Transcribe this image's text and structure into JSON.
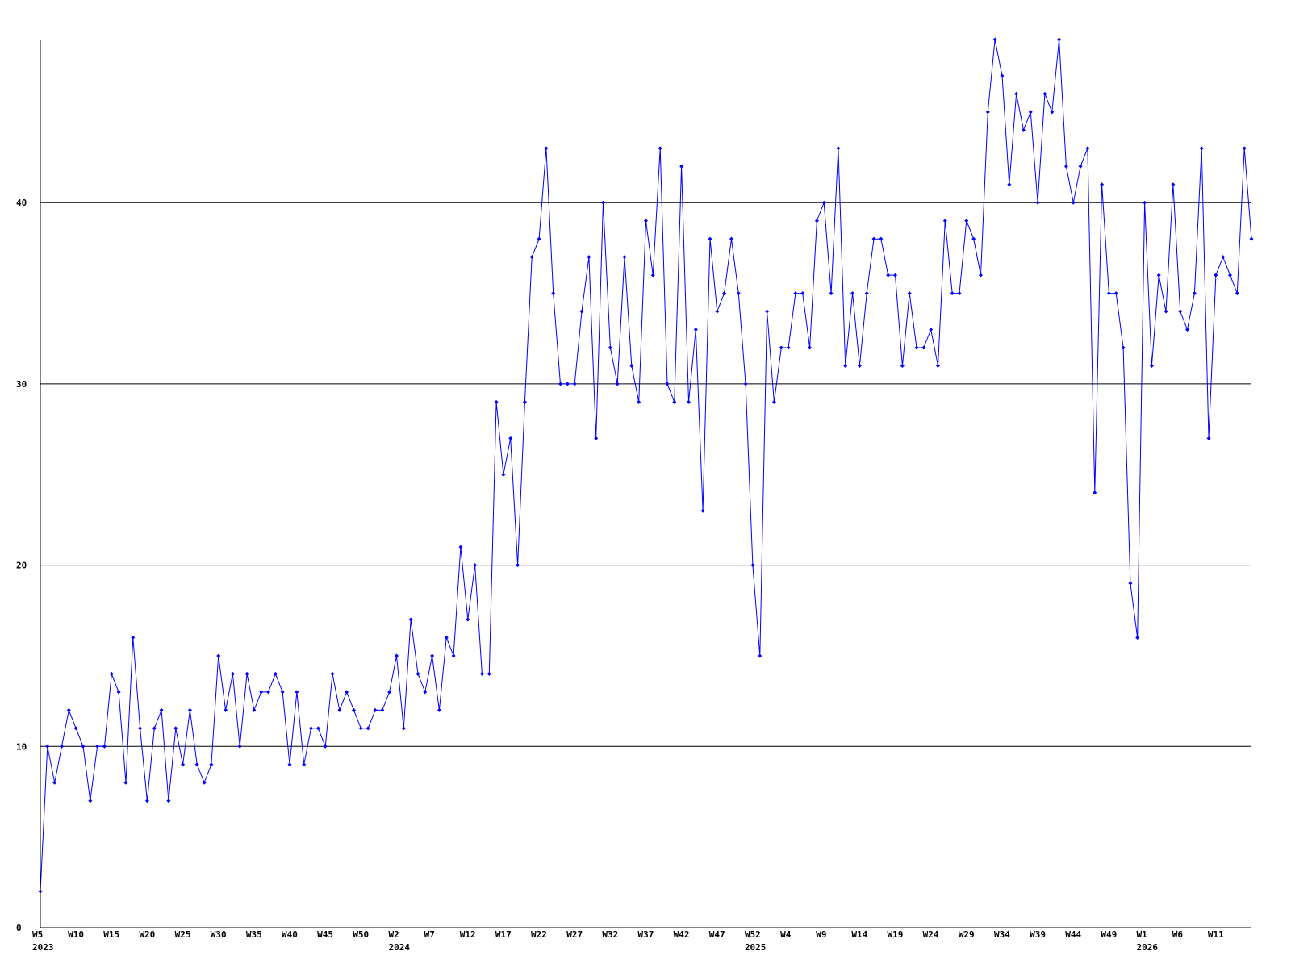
{
  "chart_data": {
    "type": "line",
    "title": "",
    "xlabel": "",
    "ylabel": "",
    "ylim": [
      0,
      49
    ],
    "y_ticks": [
      0,
      10,
      20,
      30,
      40
    ],
    "grid": "horizontal",
    "x_tick_every": 5,
    "x_tick_labels": [
      "W5",
      "W10",
      "W15",
      "W20",
      "W25",
      "W30",
      "W35",
      "W40",
      "W45",
      "W50",
      "W2",
      "W7",
      "W12",
      "W17",
      "W22",
      "W27",
      "W32",
      "W37",
      "W42",
      "W47",
      "W52",
      "W4",
      "W9",
      "W14",
      "W19",
      "W24",
      "W29",
      "W34",
      "W39",
      "W44",
      "W49",
      "W1",
      "W6",
      "W11"
    ],
    "year_labels": [
      {
        "label": "2023",
        "at_tick": "W5"
      },
      {
        "label": "2024",
        "at_tick": "W2"
      },
      {
        "label": "2025",
        "at_tick": "W52"
      },
      {
        "label": "2026",
        "at_tick": "W1"
      }
    ],
    "colors": {
      "line": "#0000ff",
      "marker": "#0000ff",
      "grid": "#000000",
      "axis": "#000000"
    },
    "series": [
      {
        "values": [
          2,
          10,
          8,
          10,
          12,
          11,
          10,
          7,
          10,
          10,
          14,
          13,
          8,
          16,
          11,
          7,
          11,
          12,
          7,
          11,
          9,
          12,
          9,
          8,
          9,
          15,
          12,
          14,
          10,
          14,
          12,
          13,
          13,
          14,
          13,
          9,
          13,
          9,
          11,
          11,
          10,
          14,
          12,
          13,
          12,
          11,
          11,
          12,
          12,
          13,
          15,
          11,
          17,
          14,
          13,
          15,
          12,
          16,
          15,
          21,
          17,
          20,
          14,
          14,
          29,
          25,
          27,
          20,
          29,
          37,
          38,
          43,
          35,
          30,
          30,
          30,
          34,
          37,
          27,
          40,
          32,
          30,
          37,
          31,
          29,
          39,
          36,
          43,
          30,
          29,
          42,
          29,
          33,
          23,
          38,
          34,
          35,
          38,
          35,
          30,
          20,
          15,
          34,
          29,
          32,
          32,
          35,
          35,
          32,
          39,
          40,
          35,
          43,
          31,
          35,
          31,
          35,
          38,
          38,
          36,
          36,
          31,
          35,
          32,
          32,
          33,
          31,
          39,
          35,
          35,
          39,
          38,
          36,
          45,
          49,
          47,
          41,
          46,
          44,
          45,
          40,
          46,
          45,
          49,
          42,
          40,
          42,
          43,
          24,
          41,
          35,
          35,
          32,
          19,
          16,
          40,
          31,
          36,
          34,
          41,
          34,
          33,
          35,
          43,
          27,
          36,
          37,
          36,
          35,
          43,
          38
        ]
      }
    ]
  }
}
